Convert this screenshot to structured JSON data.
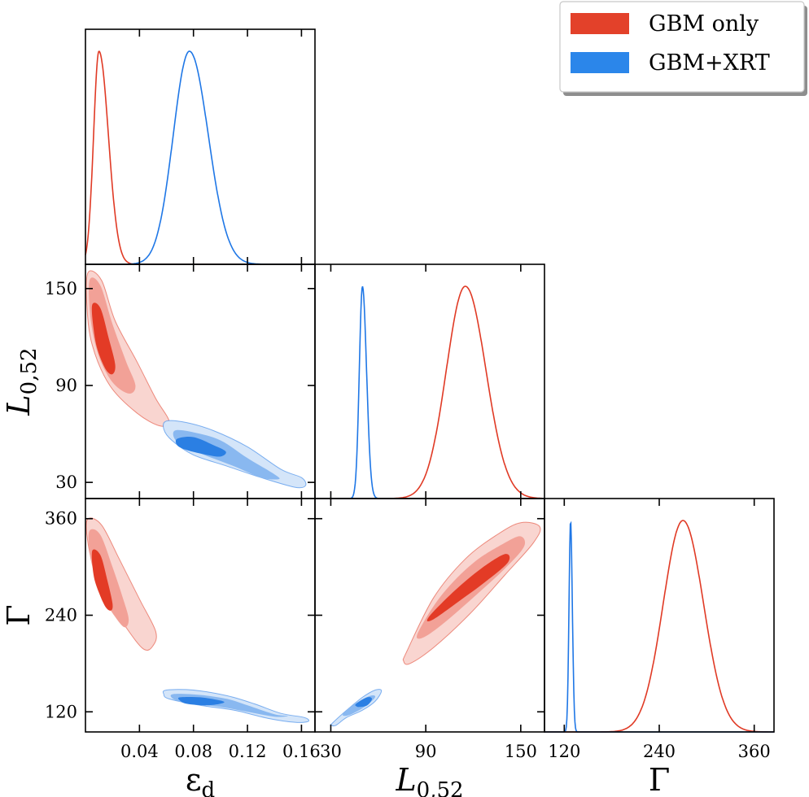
{
  "legend": {
    "position": "top-right",
    "entries": [
      {
        "label": "GBM only",
        "color": "#e3412a"
      },
      {
        "label": "GBM+XRT",
        "color": "#2b86ea"
      }
    ]
  },
  "colors": {
    "gbm_only": {
      "line": "#e03a25",
      "c68": "#e33b26",
      "c95": "#f2a197",
      "c99": "#f9d5d0"
    },
    "gbm_xrt": {
      "line": "#1f77e6",
      "c68": "#2b7fe3",
      "c95": "#89b8f0",
      "c99": "#d4e5f9"
    }
  },
  "chart_data": {
    "type": "corner",
    "parameters": [
      {
        "id": "eps_d",
        "label_main": "ε",
        "label_sub": "d",
        "range": [
          0.0,
          0.17
        ],
        "ticks": [
          0.04,
          0.08,
          0.12,
          0.16
        ],
        "tick_labels": [
          "0.04",
          "0.08",
          "0.12",
          "0.16"
        ]
      },
      {
        "id": "L052",
        "label_main": "L",
        "label_sub": "0,52",
        "range": [
          20,
          165
        ],
        "ticks": [
          30,
          90,
          150
        ],
        "tick_labels": [
          "30",
          "90",
          "150"
        ]
      },
      {
        "id": "Gamma",
        "label_main": "Γ",
        "label_sub": "",
        "range": [
          95,
          385
        ],
        "ticks": [
          120,
          240,
          360
        ],
        "tick_labels": [
          "120",
          "240",
          "360"
        ]
      }
    ],
    "series": [
      {
        "name": "GBM only",
        "key": "gbm_only",
        "marginals": {
          "eps_d": {
            "peak": 0.01,
            "s_left": 0.004,
            "s_right": 0.007
          },
          "L052": {
            "peak": 115,
            "s_left": 12,
            "s_right": 13
          },
          "Gamma": {
            "peak": 270,
            "s_left": 25,
            "s_right": 26
          }
        },
        "contours": {
          "L052_vs_eps_d": {
            "c99": [
              [
                0.002,
                160
              ],
              [
                0.012,
                155
              ],
              [
                0.022,
                130
              ],
              [
                0.038,
                105
              ],
              [
                0.052,
                82
              ],
              [
                0.062,
                68
              ],
              [
                0.055,
                65
              ],
              [
                0.038,
                73
              ],
              [
                0.018,
                90
              ],
              [
                0.005,
                115
              ],
              [
                0.001,
                140
              ]
            ],
            "c95": [
              [
                0.003,
                155
              ],
              [
                0.011,
                152
              ],
              [
                0.02,
                128
              ],
              [
                0.03,
                105
              ],
              [
                0.037,
                90
              ],
              [
                0.032,
                85
              ],
              [
                0.02,
                92
              ],
              [
                0.01,
                108
              ],
              [
                0.004,
                130
              ]
            ],
            "c68": [
              [
                0.005,
                140
              ],
              [
                0.011,
                138
              ],
              [
                0.017,
                120
              ],
              [
                0.022,
                103
              ],
              [
                0.02,
                97
              ],
              [
                0.015,
                100
              ],
              [
                0.009,
                112
              ],
              [
                0.006,
                125
              ]
            ]
          },
          "Gamma_vs_eps_d": {
            "c99": [
              [
                0.002,
                360
              ],
              [
                0.012,
                352
              ],
              [
                0.025,
                310
              ],
              [
                0.04,
                260
              ],
              [
                0.052,
                220
              ],
              [
                0.05,
                202
              ],
              [
                0.043,
                198
              ],
              [
                0.03,
                225
              ],
              [
                0.017,
                260
              ],
              [
                0.006,
                300
              ],
              [
                0.001,
                340
              ]
            ],
            "c95": [
              [
                0.003,
                345
              ],
              [
                0.011,
                340
              ],
              [
                0.02,
                300
              ],
              [
                0.028,
                260
              ],
              [
                0.032,
                235
              ],
              [
                0.029,
                225
              ],
              [
                0.022,
                238
              ],
              [
                0.014,
                260
              ],
              [
                0.007,
                290
              ],
              [
                0.003,
                318
              ]
            ],
            "c68": [
              [
                0.005,
                320
              ],
              [
                0.011,
                315
              ],
              [
                0.016,
                285
              ],
              [
                0.02,
                255
              ],
              [
                0.019,
                246
              ],
              [
                0.015,
                250
              ],
              [
                0.01,
                268
              ],
              [
                0.006,
                290
              ]
            ]
          },
          "Gamma_vs_L052": {
            "c99": [
              [
                78,
                195
              ],
              [
                95,
                262
              ],
              [
                115,
                310
              ],
              [
                135,
                340
              ],
              [
                150,
                355
              ],
              [
                162,
                350
              ],
              [
                158,
                330
              ],
              [
                140,
                290
              ],
              [
                118,
                242
              ],
              [
                95,
                200
              ],
              [
                80,
                180
              ],
              [
                76,
                183
              ]
            ],
            "c95": [
              [
                85,
                218
              ],
              [
                100,
                265
              ],
              [
                120,
                305
              ],
              [
                140,
                330
              ],
              [
                150,
                338
              ],
              [
                152,
                325
              ],
              [
                140,
                298
              ],
              [
                120,
                262
              ],
              [
                100,
                228
              ],
              [
                88,
                212
              ]
            ],
            "c68": [
              [
                92,
                238
              ],
              [
                108,
                270
              ],
              [
                125,
                298
              ],
              [
                140,
                316
              ],
              [
                142,
                306
              ],
              [
                128,
                282
              ],
              [
                110,
                256
              ],
              [
                94,
                234
              ]
            ]
          }
        }
      },
      {
        "name": "GBM+XRT",
        "key": "gbm_xrt",
        "marginals": {
          "eps_d": {
            "peak": 0.077,
            "s_left": 0.012,
            "s_right": 0.014
          },
          "L052": {
            "peak": 50,
            "s_left": 2.0,
            "s_right": 2.6
          },
          "Gamma": {
            "peak": 128,
            "s_left": 2.0,
            "s_right": 2.2
          }
        },
        "contours": {
          "L052_vs_eps_d": {
            "c99": [
              [
                0.06,
                68
              ],
              [
                0.075,
                67
              ],
              [
                0.095,
                62
              ],
              [
                0.12,
                52
              ],
              [
                0.145,
                38
              ],
              [
                0.16,
                33
              ],
              [
                0.163,
                28
              ],
              [
                0.155,
                27
              ],
              [
                0.13,
                33
              ],
              [
                0.105,
                40
              ],
              [
                0.08,
                47
              ],
              [
                0.064,
                56
              ],
              [
                0.058,
                63
              ]
            ],
            "c95": [
              [
                0.066,
                62
              ],
              [
                0.08,
                61
              ],
              [
                0.1,
                56
              ],
              [
                0.12,
                45
              ],
              [
                0.14,
                35
              ],
              [
                0.143,
                32
              ],
              [
                0.13,
                33
              ],
              [
                0.11,
                40
              ],
              [
                0.085,
                48
              ],
              [
                0.068,
                55
              ]
            ],
            "c68": [
              [
                0.068,
                57
              ],
              [
                0.08,
                58
              ],
              [
                0.095,
                53
              ],
              [
                0.104,
                49
              ],
              [
                0.1,
                46
              ],
              [
                0.09,
                47
              ],
              [
                0.075,
                50
              ],
              [
                0.068,
                53
              ]
            ]
          },
          "Gamma_vs_eps_d": {
            "c99": [
              [
                0.06,
                147
              ],
              [
                0.08,
                147
              ],
              [
                0.105,
                140
              ],
              [
                0.125,
                130
              ],
              [
                0.145,
                118
              ],
              [
                0.162,
                113
              ],
              [
                0.165,
                108
              ],
              [
                0.155,
                107
              ],
              [
                0.135,
                112
              ],
              [
                0.11,
                122
              ],
              [
                0.085,
                128
              ],
              [
                0.062,
                136
              ],
              [
                0.058,
                142
              ]
            ],
            "c95": [
              [
                0.065,
                142
              ],
              [
                0.085,
                141
              ],
              [
                0.105,
                136
              ],
              [
                0.12,
                128
              ],
              [
                0.14,
                117
              ],
              [
                0.15,
                115
              ],
              [
                0.14,
                114
              ],
              [
                0.12,
                120
              ],
              [
                0.1,
                126
              ],
              [
                0.075,
                131
              ],
              [
                0.065,
                136
              ]
            ],
            "c68": [
              [
                0.07,
                138
              ],
              [
                0.085,
                138
              ],
              [
                0.1,
                134
              ],
              [
                0.102,
                131
              ],
              [
                0.09,
                128
              ],
              [
                0.075,
                130
              ],
              [
                0.07,
                134
              ]
            ]
          },
          "Gamma_vs_L052": {
            "c99": [
              [
                31,
                106
              ],
              [
                40,
                122
              ],
              [
                50,
                138
              ],
              [
                58,
                147
              ],
              [
                62,
                146
              ],
              [
                58,
                133
              ],
              [
                50,
                122
              ],
              [
                40,
                113
              ],
              [
                33,
                103
              ],
              [
                30,
                104
              ]
            ],
            "c95": [
              [
                38,
                118
              ],
              [
                46,
                131
              ],
              [
                55,
                140
              ],
              [
                58,
                138
              ],
              [
                52,
                127
              ],
              [
                44,
                118
              ],
              [
                39,
                115
              ]
            ],
            "c68": [
              [
                46,
                130
              ],
              [
                53,
                138
              ],
              [
                56,
                136
              ],
              [
                53,
                128
              ],
              [
                48,
                126
              ],
              [
                46,
                127
              ]
            ]
          }
        }
      }
    ]
  }
}
